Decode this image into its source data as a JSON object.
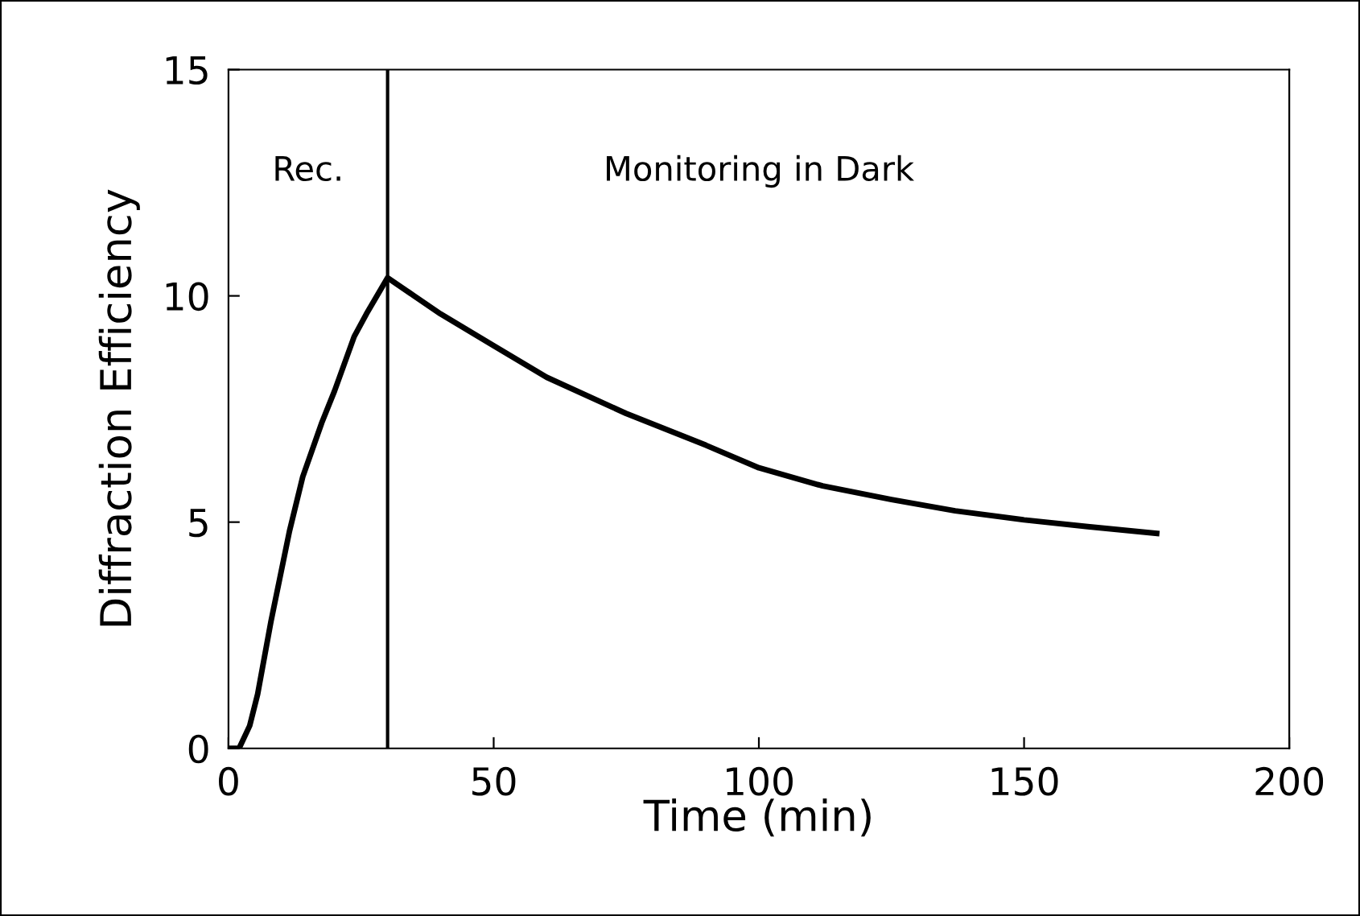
{
  "chart_data": {
    "type": "line",
    "xlabel": "Time (min)",
    "ylabel": "Diffraction Efficiency",
    "xlim": [
      0,
      200
    ],
    "ylim": [
      0,
      15
    ],
    "xticks": [
      0,
      50,
      100,
      150,
      200
    ],
    "yticks": [
      0,
      5,
      10,
      15
    ],
    "grid": false,
    "legend": false,
    "marker": "none",
    "line_style": "solid",
    "series": [
      {
        "color": "#000000",
        "x": [
          0,
          2,
          4,
          5.5,
          8,
          11.5,
          14,
          17.6,
          20,
          23.7,
          26,
          28,
          30,
          35,
          40,
          50,
          60,
          75,
          90,
          100,
          112,
          125,
          137,
          150,
          162,
          175
        ],
        "values": [
          0,
          0,
          0.5,
          1.2,
          2.8,
          4.8,
          6.0,
          7.2,
          7.9,
          9.1,
          9.6,
          10.0,
          10.4,
          10.0,
          9.6,
          8.9,
          8.2,
          7.4,
          6.7,
          6.2,
          5.8,
          5.5,
          5.25,
          5.05,
          4.9,
          4.75
        ]
      }
    ],
    "ref_lines": [
      {
        "axis": "x",
        "value": 30,
        "color": "#000000"
      }
    ],
    "annotations": [
      "Rec.",
      "Monitoring in Dark"
    ]
  }
}
